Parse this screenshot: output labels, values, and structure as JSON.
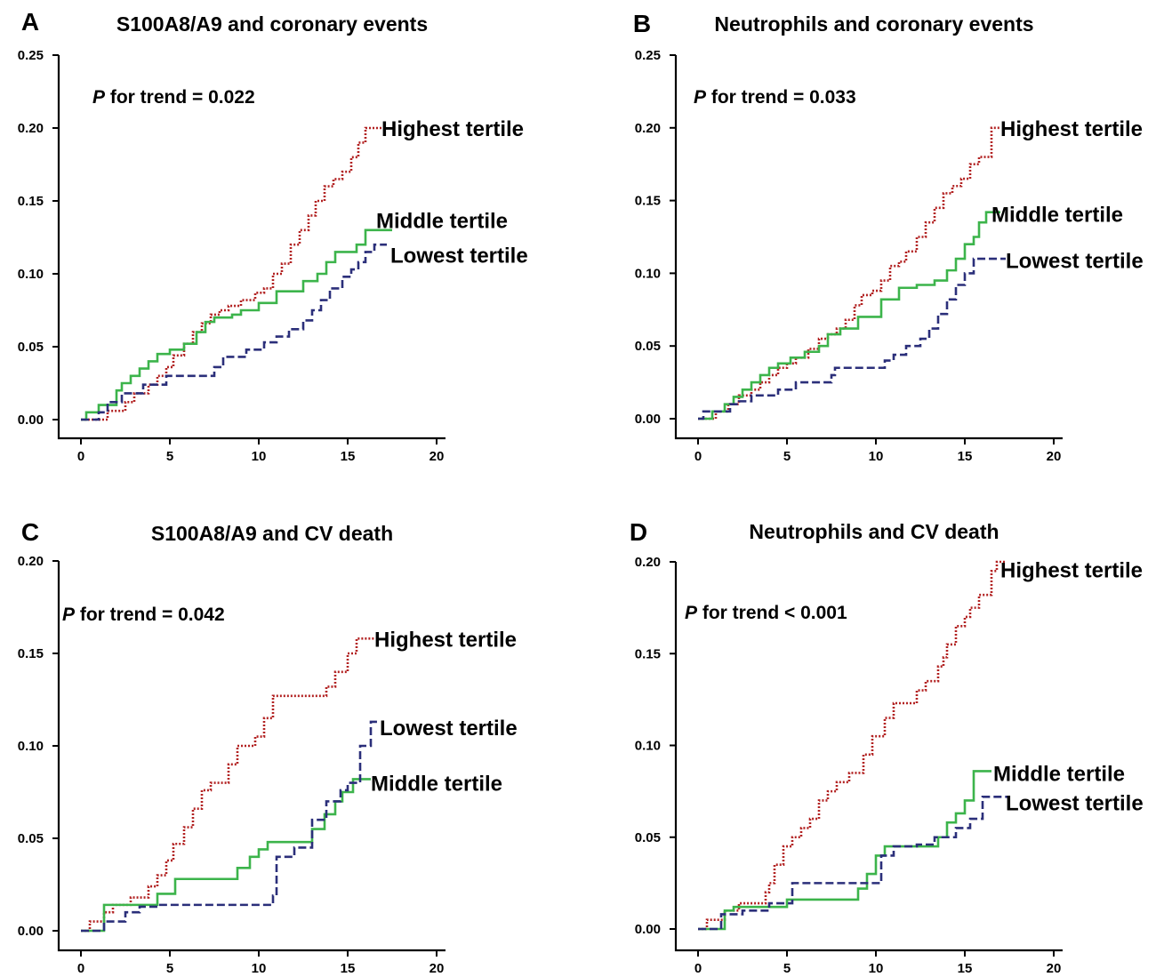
{
  "chart_data": [
    {
      "type": "line",
      "panel": "A",
      "title": "S100A8/A9 and coronary events",
      "annotation": {
        "italic": "P",
        "text": " for trend = 0.022"
      },
      "xlabel": "",
      "ylabel": "",
      "xlim": [
        0,
        20
      ],
      "ylim": [
        0,
        0.25
      ],
      "xticks": [
        "0",
        "5",
        "10",
        "15",
        "20"
      ],
      "yticks": [
        "0.00",
        "0.05",
        "0.10",
        "0.15",
        "0.20",
        "0.25"
      ],
      "grid": false,
      "series": [
        {
          "name": "Highest tertile",
          "color": "#b22222",
          "dash": "dotted",
          "x": [
            0,
            1.5,
            2.5,
            3,
            3.8,
            4.3,
            4.8,
            5.2,
            5.8,
            6.3,
            6.8,
            7.3,
            7.8,
            8.3,
            9,
            9.8,
            10.3,
            10.8,
            11.3,
            11.8,
            12.3,
            12.8,
            13.2,
            13.7,
            14.2,
            14.7,
            15.2,
            15.6,
            16,
            17
          ],
          "y": [
            0,
            0.006,
            0.012,
            0.018,
            0.024,
            0.03,
            0.036,
            0.044,
            0.052,
            0.06,
            0.066,
            0.072,
            0.075,
            0.078,
            0.082,
            0.087,
            0.09,
            0.1,
            0.107,
            0.12,
            0.13,
            0.14,
            0.15,
            0.16,
            0.165,
            0.17,
            0.18,
            0.19,
            0.2,
            0.2
          ]
        },
        {
          "name": "Middle tertile",
          "color": "#3cb44b",
          "dash": "solid",
          "x": [
            0,
            0.3,
            1,
            2,
            2.3,
            2.8,
            3.3,
            3.8,
            4.3,
            5,
            5.8,
            6.5,
            7,
            7.5,
            8.5,
            9,
            10,
            11,
            12.5,
            13.3,
            13.8,
            14.3,
            15.5,
            16,
            17.5
          ],
          "y": [
            0,
            0.005,
            0.01,
            0.02,
            0.025,
            0.03,
            0.035,
            0.04,
            0.045,
            0.048,
            0.052,
            0.06,
            0.067,
            0.07,
            0.072,
            0.075,
            0.08,
            0.088,
            0.095,
            0.1,
            0.108,
            0.115,
            0.12,
            0.13,
            0.13
          ]
        },
        {
          "name": "Lowest tertile",
          "color": "#2b2f7a",
          "dash": "dashed",
          "x": [
            0,
            1,
            1.5,
            2.3,
            3.5,
            4.8,
            7.5,
            8,
            9.3,
            10.3,
            11,
            11.7,
            12.5,
            13,
            13.5,
            14,
            14.7,
            15.2,
            15.6,
            16,
            16.5,
            17.2
          ],
          "y": [
            0,
            0.005,
            0.012,
            0.018,
            0.024,
            0.03,
            0.036,
            0.043,
            0.048,
            0.053,
            0.057,
            0.062,
            0.068,
            0.075,
            0.082,
            0.09,
            0.098,
            0.103,
            0.108,
            0.115,
            0.12,
            0.12
          ]
        }
      ],
      "labels": [
        {
          "series": "Highest tertile",
          "x": 16.9,
          "y": 0.2
        },
        {
          "series": "Middle tertile",
          "x": 16.6,
          "y": 0.137
        },
        {
          "series": "Lowest tertile",
          "x": 17.4,
          "y": 0.113
        }
      ]
    },
    {
      "type": "line",
      "panel": "B",
      "title": "Neutrophils and coronary events",
      "annotation": {
        "italic": "P",
        "text": " for trend = 0.033"
      },
      "xlabel": "",
      "ylabel": "",
      "xlim": [
        0,
        20
      ],
      "ylim": [
        0,
        0.25
      ],
      "xticks": [
        "0",
        "5",
        "10",
        "15",
        "20"
      ],
      "yticks": [
        "0.00",
        "0.05",
        "0.10",
        "0.15",
        "0.20",
        "0.25"
      ],
      "grid": false,
      "series": [
        {
          "name": "Highest tertile",
          "color": "#b22222",
          "dash": "dotted",
          "x": [
            0,
            1,
            1.7,
            2.3,
            3,
            3.5,
            4,
            4.5,
            5,
            5.5,
            6.2,
            6.8,
            7.3,
            7.8,
            8.3,
            8.8,
            9.2,
            9.8,
            10.3,
            10.8,
            11.3,
            11.7,
            12.3,
            12.8,
            13.3,
            13.8,
            14.3,
            14.8,
            15.3,
            15.8,
            16.5,
            17
          ],
          "y": [
            0,
            0.005,
            0.01,
            0.016,
            0.02,
            0.025,
            0.03,
            0.035,
            0.038,
            0.042,
            0.048,
            0.055,
            0.058,
            0.062,
            0.068,
            0.078,
            0.085,
            0.088,
            0.095,
            0.105,
            0.108,
            0.115,
            0.125,
            0.135,
            0.145,
            0.155,
            0.16,
            0.165,
            0.175,
            0.18,
            0.2,
            0.2
          ]
        },
        {
          "name": "Middle tertile",
          "color": "#3cb44b",
          "dash": "solid",
          "x": [
            0,
            0.8,
            1.5,
            2,
            2.5,
            3,
            3.5,
            4,
            4.5,
            5.2,
            6,
            6.8,
            7.3,
            8,
            9,
            10.3,
            11.3,
            12.3,
            13.3,
            14,
            14.5,
            15,
            15.5,
            15.8,
            16.2,
            17
          ],
          "y": [
            0,
            0.005,
            0.01,
            0.015,
            0.02,
            0.025,
            0.03,
            0.035,
            0.038,
            0.042,
            0.046,
            0.05,
            0.058,
            0.062,
            0.07,
            0.082,
            0.09,
            0.092,
            0.095,
            0.102,
            0.11,
            0.12,
            0.125,
            0.135,
            0.142,
            0.142
          ]
        },
        {
          "name": "Lowest tertile",
          "color": "#2b2f7a",
          "dash": "dashed",
          "x": [
            0,
            0.3,
            1.8,
            2.3,
            3,
            4.5,
            5.5,
            7.5,
            7.7,
            10,
            10.5,
            11,
            11.7,
            12.5,
            13,
            13.5,
            14,
            14.5,
            15,
            15.5,
            16.5,
            17.3
          ],
          "y": [
            0,
            0.005,
            0.01,
            0.012,
            0.016,
            0.02,
            0.025,
            0.03,
            0.035,
            0.035,
            0.04,
            0.044,
            0.05,
            0.055,
            0.062,
            0.072,
            0.082,
            0.092,
            0.1,
            0.11,
            0.11,
            0.11
          ]
        }
      ],
      "labels": [
        {
          "series": "Highest tertile",
          "x": 17.0,
          "y": 0.2
        },
        {
          "series": "Middle tertile",
          "x": 16.5,
          "y": 0.141
        },
        {
          "series": "Lowest tertile",
          "x": 17.3,
          "y": 0.109
        }
      ]
    },
    {
      "type": "line",
      "panel": "C",
      "title": "S100A8/A9 and CV death",
      "annotation": {
        "italic": "P",
        "text": " for trend = 0.042"
      },
      "xlabel": "",
      "ylabel": "",
      "xlim": [
        0,
        20
      ],
      "ylim": [
        0,
        0.2
      ],
      "xticks": [
        "0",
        "5",
        "10",
        "15",
        "20"
      ],
      "yticks": [
        "0.00",
        "0.05",
        "0.10",
        "0.15",
        "0.20"
      ],
      "grid": false,
      "series": [
        {
          "name": "Highest tertile",
          "color": "#b22222",
          "dash": "dotted",
          "x": [
            0,
            0.5,
            1.3,
            1.8,
            2.8,
            3.8,
            4.3,
            4.8,
            5.2,
            5.8,
            6.3,
            6.8,
            7.3,
            8.3,
            8.8,
            9.8,
            10.3,
            10.8,
            12.5,
            13.8,
            14.3,
            15,
            15.5,
            16.5
          ],
          "y": [
            0,
            0.005,
            0.01,
            0.014,
            0.018,
            0.024,
            0.03,
            0.038,
            0.047,
            0.056,
            0.066,
            0.076,
            0.08,
            0.09,
            0.1,
            0.105,
            0.115,
            0.127,
            0.127,
            0.132,
            0.14,
            0.15,
            0.158,
            0.158
          ]
        },
        {
          "name": "Middle tertile",
          "color": "#3cb44b",
          "dash": "solid",
          "x": [
            0,
            1.3,
            3.8,
            4.3,
            5.3,
            8.8,
            9.5,
            10,
            10.5,
            13,
            13.7,
            14.3,
            14.7,
            15.3,
            16.3
          ],
          "y": [
            0,
            0.014,
            0.014,
            0.02,
            0.028,
            0.034,
            0.04,
            0.044,
            0.048,
            0.055,
            0.063,
            0.07,
            0.075,
            0.082,
            0.082
          ]
        },
        {
          "name": "Lowest tertile",
          "color": "#2b2f7a",
          "dash": "dashed",
          "x": [
            0,
            1.3,
            2.5,
            3.3,
            4.3,
            9.8,
            10.8,
            11,
            12,
            13,
            13.8,
            14.6,
            15,
            15.7,
            16.3,
            16.8
          ],
          "y": [
            0,
            0.005,
            0.01,
            0.013,
            0.014,
            0.014,
            0.019,
            0.04,
            0.045,
            0.06,
            0.07,
            0.076,
            0.08,
            0.1,
            0.113,
            0.113
          ]
        }
      ],
      "labels": [
        {
          "series": "Highest tertile",
          "x": 16.5,
          "y": 0.158
        },
        {
          "series": "Lowest tertile",
          "x": 16.8,
          "y": 0.11
        },
        {
          "series": "Middle tertile",
          "x": 16.3,
          "y": 0.08
        }
      ]
    },
    {
      "type": "line",
      "panel": "D",
      "title": "Neutrophils and CV death",
      "annotation": {
        "italic": "P",
        "text": " for trend < 0.001"
      },
      "xlabel": "",
      "ylabel": "",
      "xlim": [
        0,
        20
      ],
      "ylim": [
        0,
        0.2
      ],
      "xticks": [
        "0",
        "5",
        "10",
        "15",
        "20"
      ],
      "yticks": [
        "0.00",
        "0.05",
        "0.10",
        "0.15",
        "0.20"
      ],
      "grid": false,
      "series": [
        {
          "name": "Highest tertile",
          "color": "#b22222",
          "dash": "dotted",
          "x": [
            0,
            0.5,
            1.5,
            2.3,
            3.8,
            4,
            4.3,
            4.8,
            5.3,
            5.8,
            6.3,
            6.8,
            7.3,
            7.8,
            8.5,
            9.3,
            9.8,
            10.5,
            11,
            11.7,
            12.3,
            12.8,
            13.5,
            13.8,
            14,
            14.5,
            15,
            15.3,
            15.8,
            16.5,
            16.8,
            17.3
          ],
          "y": [
            0,
            0.005,
            0.01,
            0.014,
            0.02,
            0.025,
            0.035,
            0.045,
            0.05,
            0.055,
            0.06,
            0.07,
            0.075,
            0.08,
            0.085,
            0.095,
            0.105,
            0.115,
            0.123,
            0.123,
            0.13,
            0.135,
            0.143,
            0.148,
            0.155,
            0.165,
            0.17,
            0.175,
            0.182,
            0.195,
            0.2,
            0.2
          ]
        },
        {
          "name": "Middle tertile",
          "color": "#3cb44b",
          "dash": "solid",
          "x": [
            0,
            1.5,
            2,
            5,
            9,
            9.5,
            10,
            10.5,
            12,
            13.5,
            14,
            14.5,
            15,
            15.5,
            16.5
          ],
          "y": [
            0,
            0.01,
            0.012,
            0.016,
            0.022,
            0.03,
            0.04,
            0.045,
            0.045,
            0.05,
            0.058,
            0.063,
            0.07,
            0.086,
            0.086
          ]
        },
        {
          "name": "Lowest tertile",
          "color": "#2b2f7a",
          "dash": "dashed",
          "x": [
            0,
            1.3,
            2.5,
            4,
            5.3,
            9.5,
            10.3,
            11,
            12.3,
            13.3,
            14.5,
            15.3,
            16,
            17.5
          ],
          "y": [
            0,
            0.008,
            0.01,
            0.014,
            0.025,
            0.025,
            0.04,
            0.045,
            0.046,
            0.05,
            0.055,
            0.06,
            0.072,
            0.072
          ]
        }
      ],
      "labels": [
        {
          "series": "Highest tertile",
          "x": 17.0,
          "y": 0.196
        },
        {
          "series": "Middle tertile",
          "x": 16.6,
          "y": 0.085
        },
        {
          "series": "Lowest tertile",
          "x": 17.3,
          "y": 0.069
        }
      ]
    }
  ]
}
